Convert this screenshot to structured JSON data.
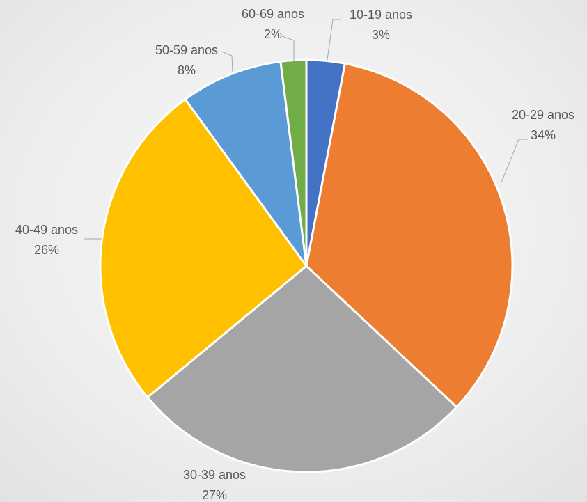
{
  "chart_data": {
    "type": "pie",
    "categories": [
      "10-19 anos",
      "20-29 anos",
      "30-39 anos",
      "40-49 anos",
      "50-59 anos",
      "60-69 anos"
    ],
    "values": [
      3,
      34,
      27,
      26,
      8,
      2
    ],
    "value_labels": [
      "3%",
      "34%",
      "27%",
      "26%",
      "8%",
      "2%"
    ],
    "colors": [
      "#4472c4",
      "#ed7d31",
      "#a5a5a5",
      "#ffc000",
      "#5b9bd5",
      "#70ad47"
    ]
  }
}
